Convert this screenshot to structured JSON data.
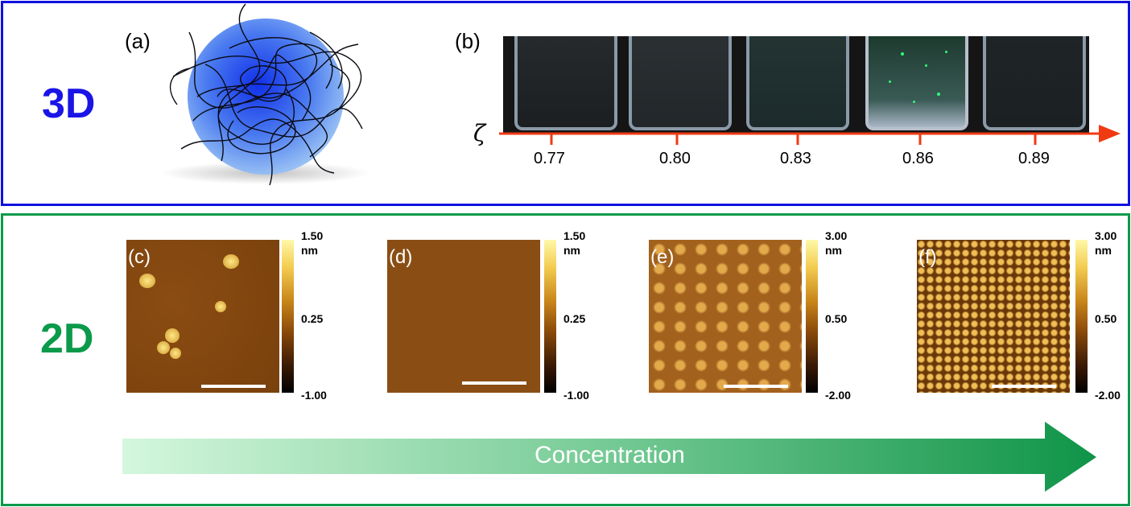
{
  "top": {
    "dim_label": "3D",
    "panel_a": "(a)",
    "panel_b": "(b)",
    "zeta_symbol": "ζ",
    "zeta_values": [
      "0.77",
      "0.80",
      "0.83",
      "0.86",
      "0.89"
    ]
  },
  "bottom": {
    "dim_label": "2D",
    "arrow_label": "Concentration",
    "panels": [
      {
        "tag": "(c)",
        "max": "1.50",
        "unit": "nm",
        "mid": "0.25",
        "min": "-1.00"
      },
      {
        "tag": "(d)",
        "max": "1.50",
        "unit": "nm",
        "mid": "0.25",
        "min": "-1.00"
      },
      {
        "tag": "(e)",
        "max": "3.00",
        "unit": "nm",
        "mid": "0.50",
        "min": "-2.00"
      },
      {
        "tag": "(f)",
        "max": "3.00",
        "unit": "nm",
        "mid": "0.50",
        "min": "-2.00"
      }
    ]
  },
  "colors": {
    "blue": "#1010e0",
    "green": "#0a9a4a",
    "red_arrow": "#f03a12"
  }
}
